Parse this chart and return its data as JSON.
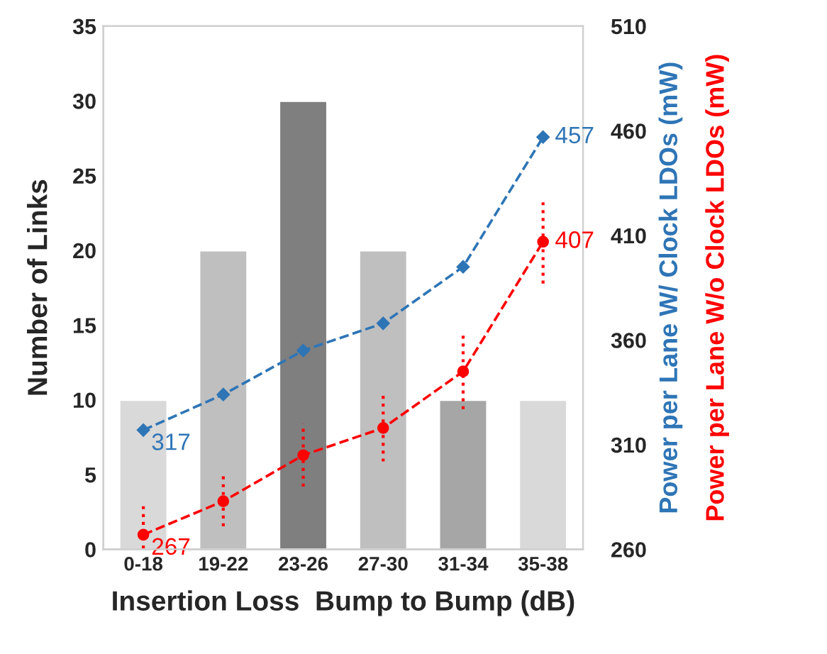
{
  "chart_data": {
    "type": "bar",
    "xlabel": "Insertion Loss  Bump to Bump (dB)",
    "ylabel": "Number of Links",
    "y2label": "Power per Lane W/ Clock LDOs (mW)",
    "y3label": "Power per Lane W/o Clock LDOs (mW)",
    "categories": [
      "0-18",
      "19-22",
      "23-26",
      "27-30",
      "31-34",
      "35-38"
    ],
    "ylim": [
      0,
      35
    ],
    "yticks": [
      0,
      5,
      10,
      15,
      20,
      25,
      30,
      35
    ],
    "y2lim": [
      260,
      510
    ],
    "y2ticks": [
      260,
      310,
      360,
      410,
      460,
      510
    ],
    "grid": false,
    "legend": false,
    "series": [
      {
        "values": [
          10,
          20,
          30,
          20,
          10,
          10
        ],
        "colors": [
          "#d9d9d9",
          "#bfbfbf",
          "#7f7f7f",
          "#bfbfbf",
          "#a6a6a6",
          "#d9d9d9"
        ]
      },
      {
        "type": "line",
        "axis": "y2",
        "color": "#2e75b6",
        "marker": "diamond",
        "line_style": "dashed",
        "values": [
          317,
          334,
          355,
          368,
          395,
          457
        ],
        "value_labels": [
          "317",
          null,
          null,
          null,
          null,
          "457"
        ]
      },
      {
        "type": "line",
        "axis": "y2",
        "color": "#ff0000",
        "marker": "circle",
        "line_style": "dashed",
        "values": [
          267,
          283,
          305,
          318,
          345,
          407
        ],
        "errors": [
          14,
          12,
          15,
          16,
          18,
          20
        ],
        "value_labels": [
          "267",
          null,
          null,
          null,
          null,
          "407"
        ]
      }
    ]
  }
}
